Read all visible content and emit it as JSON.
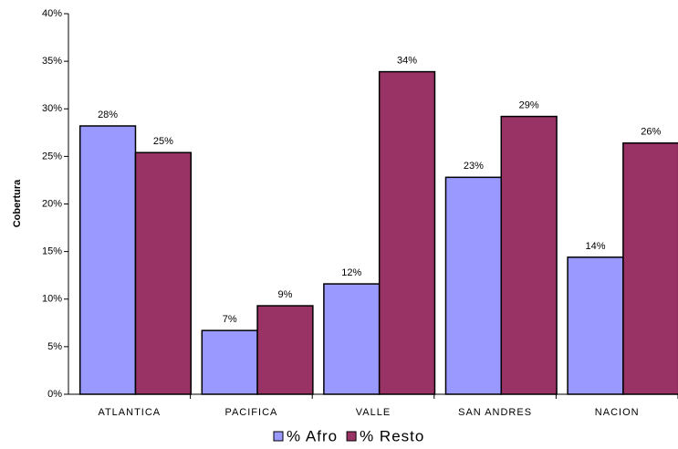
{
  "chart_data": {
    "type": "bar",
    "y_label": "Cobertura",
    "categories": [
      "ATLANTICA",
      "PACIFICA",
      "VALLE",
      "SAN ANDRES",
      "NACION"
    ],
    "series": [
      {
        "name": "% Afro",
        "color": "#9999ff",
        "values": [
          28.2,
          6.7,
          11.6,
          22.8,
          14.4
        ],
        "value_labels": [
          "28%",
          "7%",
          "12%",
          "23%",
          "14%"
        ]
      },
      {
        "name": "% Resto",
        "color": "#993366",
        "values": [
          25.4,
          9.3,
          33.9,
          29.2,
          26.4
        ],
        "value_labels": [
          "25%",
          "9%",
          "34%",
          "29%",
          "26%"
        ]
      }
    ],
    "ylim": [
      0,
      40
    ],
    "yticks": [
      {
        "value": 0,
        "label": "0%"
      },
      {
        "value": 5,
        "label": "5%"
      },
      {
        "value": 10,
        "label": "10%"
      },
      {
        "value": 15,
        "label": "15%"
      },
      {
        "value": 20,
        "label": "20%"
      },
      {
        "value": 25,
        "label": "25%"
      },
      {
        "value": 30,
        "label": "30%"
      },
      {
        "value": 35,
        "label": "35%"
      },
      {
        "value": 40,
        "label": "40%"
      }
    ],
    "legend": "bottom"
  }
}
